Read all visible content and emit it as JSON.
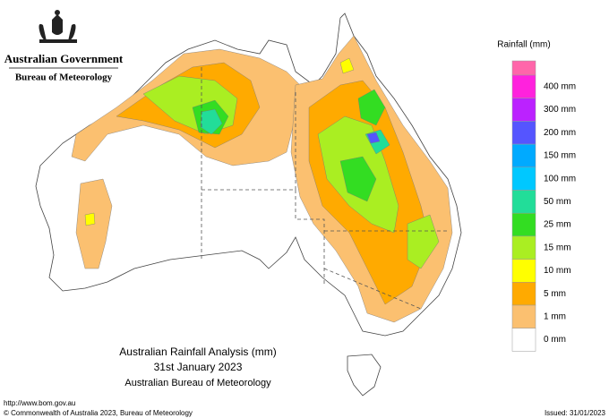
{
  "header": {
    "agency": "Australian Government",
    "bureau": "Bureau of Meteorology"
  },
  "title": {
    "line1": "Australian Rainfall Analysis (mm)",
    "line2": "31st January 2023",
    "line3": "Australian Bureau of Meteorology"
  },
  "legend": {
    "title": "Rainfall (mm)",
    "items": [
      {
        "color": "#ff66aa"
      },
      {
        "label": "400 mm",
        "color": "#ff22dd"
      },
      {
        "label": "300 mm",
        "color": "#bb22ff"
      },
      {
        "label": "200 mm",
        "color": "#5555ff"
      },
      {
        "label": "150 mm",
        "color": "#00aaff"
      },
      {
        "label": "100 mm",
        "color": "#00c8ff"
      },
      {
        "label": "50 mm",
        "color": "#22dd99"
      },
      {
        "label": "25 mm",
        "color": "#33dd22"
      },
      {
        "label": "15 mm",
        "color": "#aaee22"
      },
      {
        "label": "10 mm",
        "color": "#ffff00"
      },
      {
        "label": "5 mm",
        "color": "#ffaa00"
      },
      {
        "label": "1 mm",
        "color": "#fbc070"
      },
      {
        "label": "0 mm",
        "color": "#ffffff"
      }
    ]
  },
  "footer": {
    "url": "http://www.bom.gov.au",
    "copyright": "© Commonwealth of Australia 2023, Bureau of Meteorology",
    "issued": "Issued: 31/01/2023"
  }
}
